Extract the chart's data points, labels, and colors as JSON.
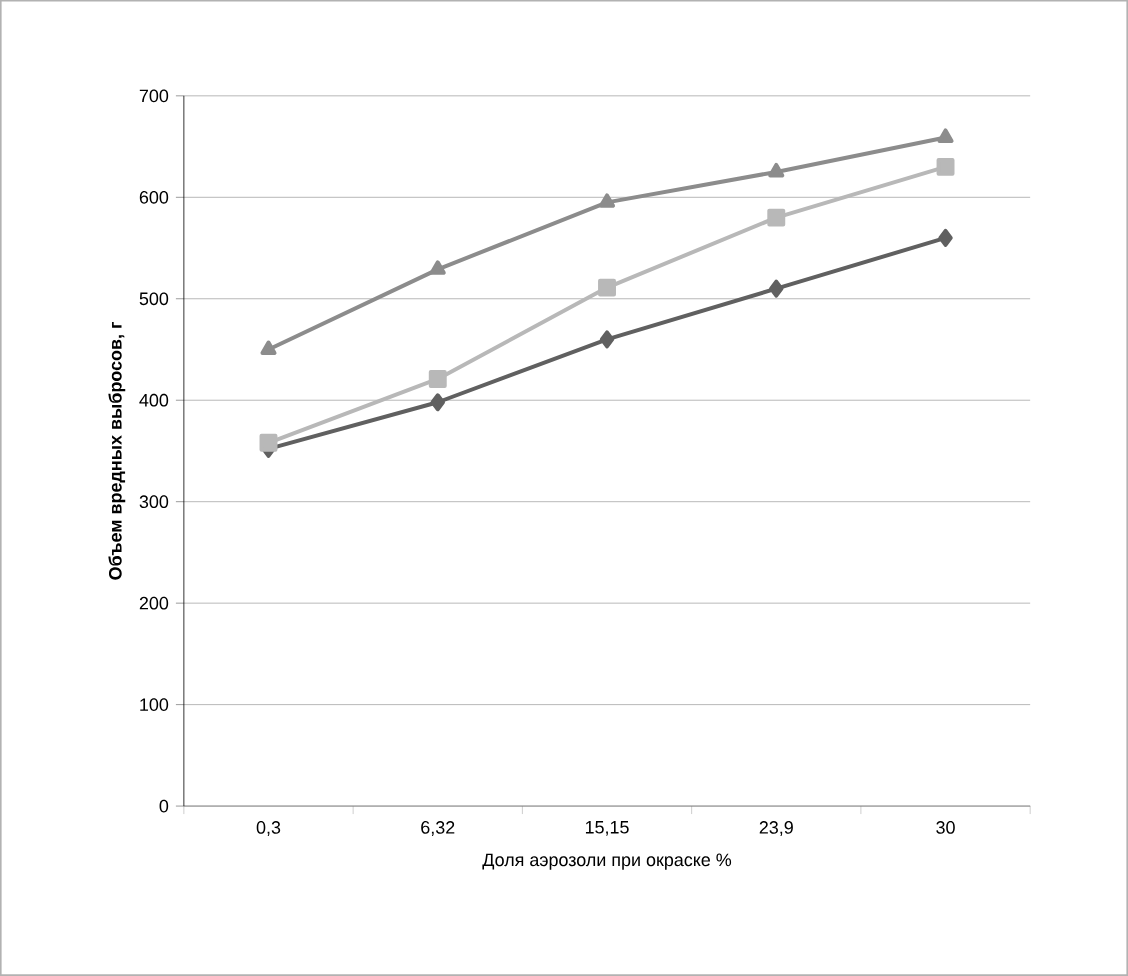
{
  "chart_data": {
    "type": "line",
    "xlabel": "Доля аэрозоли при окраске %",
    "ylabel": "Объем вредных выбросов, г",
    "categories": [
      "0,3",
      "6,32",
      "15,15",
      "23,9",
      "30"
    ],
    "series": [
      {
        "color": "#606060",
        "marker": "diamond",
        "values": [
          352,
          398,
          460,
          510,
          560
        ]
      },
      {
        "color": "#b8b8b8",
        "marker": "square",
        "values": [
          358,
          421,
          511,
          580,
          630
        ]
      },
      {
        "color": "#8c8c8c",
        "marker": "triangle",
        "values": [
          450,
          529,
          595,
          625,
          659
        ]
      }
    ],
    "ylim": [
      0,
      700
    ],
    "yticks": [
      0,
      100,
      200,
      300,
      400,
      500,
      600,
      700
    ],
    "grid": "y",
    "line_style": "solid"
  }
}
